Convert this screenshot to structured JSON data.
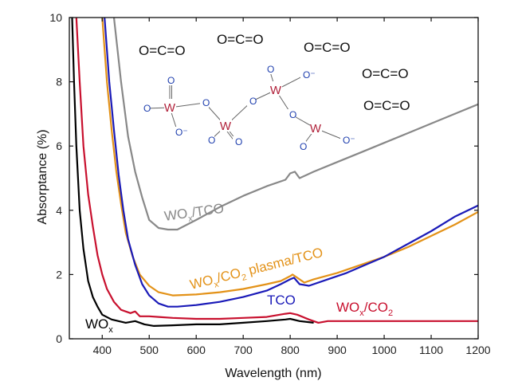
{
  "chart_data": {
    "type": "line",
    "title": "",
    "xlabel": "Wavelength (nm)",
    "ylabel": "Absorptance (%)",
    "xlim": [
      330,
      1200
    ],
    "ylim": [
      0,
      10
    ],
    "xticks": [
      400,
      500,
      600,
      700,
      800,
      900,
      1000,
      1100,
      1200
    ],
    "yticks": [
      0,
      2,
      4,
      6,
      8,
      10
    ],
    "grid": false,
    "legend": "none",
    "series": [
      {
        "name": "WOₓ/TCO",
        "label_main": "WO",
        "label_sub": "x",
        "label_tail": "/TCO",
        "color": "#888888",
        "points": [
          [
            425,
            10
          ],
          [
            440,
            8.0
          ],
          [
            455,
            6.3
          ],
          [
            470,
            5.2
          ],
          [
            485,
            4.4
          ],
          [
            500,
            3.7
          ],
          [
            520,
            3.45
          ],
          [
            540,
            3.4
          ],
          [
            560,
            3.4
          ],
          [
            600,
            3.7
          ],
          [
            650,
            4.1
          ],
          [
            700,
            4.45
          ],
          [
            750,
            4.75
          ],
          [
            790,
            4.95
          ],
          [
            800,
            5.15
          ],
          [
            810,
            5.2
          ],
          [
            820,
            5.0
          ],
          [
            850,
            5.2
          ],
          [
            900,
            5.5
          ],
          [
            950,
            5.8
          ],
          [
            1000,
            6.1
          ],
          [
            1050,
            6.4
          ],
          [
            1100,
            6.7
          ],
          [
            1150,
            7.0
          ],
          [
            1200,
            7.3
          ]
        ]
      },
      {
        "name": "WOₓ/CO₂ plasma/TCO",
        "label_main": "WO",
        "label_sub": "x",
        "label_mid": "/CO",
        "label_sub2": "2",
        "label_tail": " plasma/TCO",
        "color": "#e39218",
        "points": [
          [
            400,
            10
          ],
          [
            410,
            8.0
          ],
          [
            420,
            6.5
          ],
          [
            430,
            5.2
          ],
          [
            440,
            4.2
          ],
          [
            450,
            3.3
          ],
          [
            465,
            2.55
          ],
          [
            480,
            2.0
          ],
          [
            500,
            1.65
          ],
          [
            520,
            1.45
          ],
          [
            550,
            1.35
          ],
          [
            600,
            1.38
          ],
          [
            650,
            1.45
          ],
          [
            700,
            1.55
          ],
          [
            750,
            1.7
          ],
          [
            780,
            1.8
          ],
          [
            800,
            1.95
          ],
          [
            805,
            2.0
          ],
          [
            815,
            1.9
          ],
          [
            830,
            1.75
          ],
          [
            850,
            1.85
          ],
          [
            900,
            2.05
          ],
          [
            950,
            2.3
          ],
          [
            1000,
            2.55
          ],
          [
            1050,
            2.85
          ],
          [
            1100,
            3.2
          ],
          [
            1150,
            3.55
          ],
          [
            1200,
            3.95
          ]
        ]
      },
      {
        "name": "TCO",
        "label_main": "TCO",
        "color": "#1a1ab8",
        "points": [
          [
            405,
            10
          ],
          [
            415,
            8.0
          ],
          [
            425,
            6.5
          ],
          [
            435,
            5.1
          ],
          [
            445,
            4.0
          ],
          [
            455,
            3.1
          ],
          [
            470,
            2.3
          ],
          [
            485,
            1.7
          ],
          [
            500,
            1.35
          ],
          [
            520,
            1.1
          ],
          [
            540,
            1.0
          ],
          [
            560,
            1.0
          ],
          [
            600,
            1.05
          ],
          [
            650,
            1.15
          ],
          [
            700,
            1.3
          ],
          [
            750,
            1.5
          ],
          [
            780,
            1.7
          ],
          [
            800,
            1.85
          ],
          [
            808,
            1.9
          ],
          [
            820,
            1.7
          ],
          [
            840,
            1.65
          ],
          [
            880,
            1.85
          ],
          [
            920,
            2.05
          ],
          [
            960,
            2.3
          ],
          [
            1000,
            2.55
          ],
          [
            1050,
            2.95
          ],
          [
            1100,
            3.35
          ],
          [
            1150,
            3.8
          ],
          [
            1200,
            4.15
          ]
        ]
      },
      {
        "name": "WOₓ/CO₂",
        "label_main": "WO",
        "label_sub": "x",
        "label_mid": "/CO",
        "label_sub2": "2",
        "color": "#c8102e",
        "points": [
          [
            345,
            10
          ],
          [
            352,
            8.0
          ],
          [
            360,
            6.0
          ],
          [
            370,
            4.5
          ],
          [
            380,
            3.5
          ],
          [
            390,
            2.6
          ],
          [
            400,
            2.0
          ],
          [
            410,
            1.55
          ],
          [
            425,
            1.15
          ],
          [
            440,
            0.9
          ],
          [
            460,
            0.8
          ],
          [
            470,
            0.85
          ],
          [
            480,
            0.7
          ],
          [
            500,
            0.7
          ],
          [
            520,
            0.68
          ],
          [
            550,
            0.65
          ],
          [
            600,
            0.62
          ],
          [
            650,
            0.62
          ],
          [
            700,
            0.65
          ],
          [
            750,
            0.68
          ],
          [
            790,
            0.78
          ],
          [
            800,
            0.8
          ],
          [
            815,
            0.75
          ],
          [
            840,
            0.6
          ],
          [
            860,
            0.5
          ],
          [
            880,
            0.55
          ],
          [
            900,
            0.55
          ],
          [
            1000,
            0.55
          ],
          [
            1100,
            0.55
          ],
          [
            1200,
            0.55
          ]
        ]
      },
      {
        "name": "WOₓ",
        "label_main": "WO",
        "label_sub": "x",
        "color": "#000000",
        "points": [
          [
            336,
            10
          ],
          [
            340,
            8.0
          ],
          [
            345,
            6.0
          ],
          [
            352,
            4.0
          ],
          [
            360,
            2.8
          ],
          [
            370,
            1.8
          ],
          [
            380,
            1.3
          ],
          [
            390,
            1.0
          ],
          [
            400,
            0.75
          ],
          [
            420,
            0.6
          ],
          [
            450,
            0.5
          ],
          [
            470,
            0.55
          ],
          [
            490,
            0.45
          ],
          [
            510,
            0.4
          ],
          [
            550,
            0.42
          ],
          [
            600,
            0.45
          ],
          [
            650,
            0.45
          ],
          [
            700,
            0.5
          ],
          [
            750,
            0.55
          ],
          [
            790,
            0.6
          ],
          [
            800,
            0.62
          ],
          [
            820,
            0.55
          ],
          [
            850,
            0.5
          ]
        ]
      }
    ],
    "annotations": {
      "molecule_labels": [
        "O=C=O",
        "O=C=O",
        "O=C=O",
        "O=C=O",
        "O=C=O"
      ],
      "w_atom": "W",
      "o_atom": "O",
      "o_minus": "O⁻"
    }
  }
}
